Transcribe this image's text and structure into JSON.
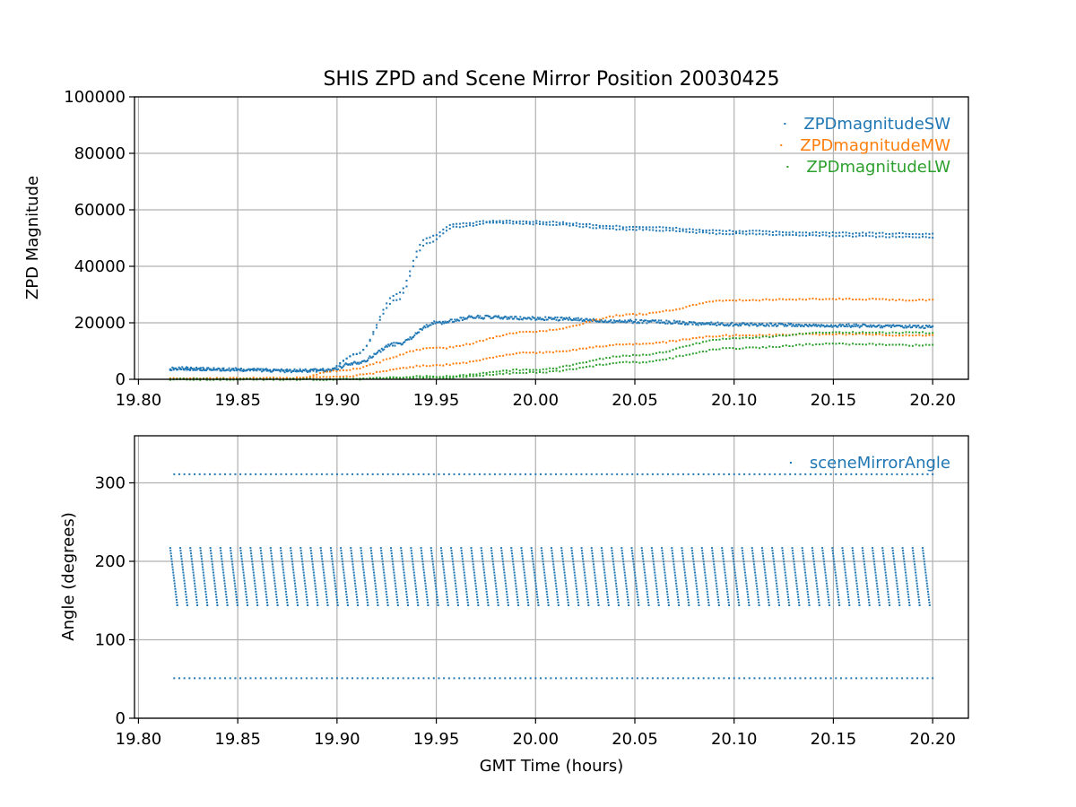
{
  "chart_data": [
    {
      "type": "scatter",
      "title": "SHIS ZPD and Scene Mirror Position 20030425",
      "xlabel": "",
      "ylabel": "ZPD Magnitude",
      "xlim": [
        19.798,
        20.218
      ],
      "ylim": [
        0,
        100000
      ],
      "xticks": [
        "19.80",
        "19.85",
        "19.90",
        "19.95",
        "20.00",
        "20.05",
        "20.10",
        "20.15",
        "20.20"
      ],
      "yticks": [
        "0",
        "20000",
        "40000",
        "60000",
        "80000",
        "100000"
      ],
      "grid": true,
      "legend": "top-right",
      "series": [
        {
          "name": "ZPDmagnitudeSW",
          "color": "#1f77b4",
          "branches": [
            {
              "x": [
                19.816,
                19.85,
                19.88,
                19.895,
                19.91,
                19.93,
                19.945,
                19.96,
                19.98,
                20.0,
                20.05,
                20.1,
                20.15,
                20.2
              ],
              "y": [
                3500,
                3300,
                3000,
                3200,
                9000,
                28000,
                48000,
                54000,
                55500,
                55000,
                53000,
                51500,
                50800,
                50300
              ]
            },
            {
              "x": [
                19.816,
                19.85,
                19.88,
                19.895,
                19.91,
                19.93,
                19.945,
                19.96,
                19.98,
                20.0,
                20.05,
                20.1,
                20.15,
                20.2
              ],
              "y": [
                3500,
                3300,
                3000,
                3200,
                9000,
                30000,
                50000,
                55000,
                56000,
                55800,
                54000,
                52500,
                51800,
                51500
              ]
            },
            {
              "x": [
                19.816,
                19.85,
                19.88,
                19.895,
                19.91,
                19.93,
                19.95,
                19.97,
                20.0,
                20.05,
                20.1,
                20.15,
                20.2
              ],
              "y": [
                3800,
                3400,
                3000,
                3200,
                6000,
                12500,
                20000,
                22000,
                21500,
                20500,
                19500,
                19000,
                18500
              ]
            }
          ]
        },
        {
          "name": "ZPDmagnitudeMW",
          "color": "#ff7f0e",
          "branches": [
            {
              "x": [
                19.816,
                19.88,
                19.9,
                19.95,
                20.0,
                20.05,
                20.1,
                20.15,
                20.2
              ],
              "y": [
                200,
                400,
                1000,
                5000,
                9500,
                12500,
                15500,
                16000,
                15500
              ]
            },
            {
              "x": [
                19.816,
                19.88,
                19.9,
                19.95,
                20.0,
                20.05,
                20.1,
                20.15,
                20.2
              ],
              "y": [
                200,
                500,
                3000,
                11000,
                17000,
                23000,
                28000,
                28500,
                28000
              ]
            }
          ]
        },
        {
          "name": "ZPDmagnitudeLW",
          "color": "#2ca02c",
          "branches": [
            {
              "x": [
                19.816,
                19.9,
                19.95,
                20.0,
                20.05,
                20.1,
                20.15,
                20.2
              ],
              "y": [
                0,
                0,
                500,
                2500,
                6000,
                11000,
                12500,
                12000
              ]
            },
            {
              "x": [
                19.816,
                19.9,
                19.95,
                20.0,
                20.05,
                20.1,
                20.15,
                20.2
              ],
              "y": [
                0,
                0,
                1000,
                3500,
                8500,
                14500,
                16500,
                16500
              ]
            }
          ]
        }
      ]
    },
    {
      "type": "scatter",
      "title": "",
      "xlabel": "GMT Time (hours)",
      "ylabel": "Angle (degrees)",
      "xlim": [
        19.798,
        20.218
      ],
      "ylim": [
        0,
        360
      ],
      "xticks": [
        "19.80",
        "19.85",
        "19.90",
        "19.95",
        "20.00",
        "20.05",
        "20.10",
        "20.15",
        "20.20"
      ],
      "yticks": [
        "0",
        "100",
        "200",
        "300"
      ],
      "grid": true,
      "legend": "top-right",
      "series": [
        {
          "name": "sceneMirrorAngle",
          "color": "#1f77b4",
          "levels": [
            {
              "x_range": [
                19.818,
                20.2
              ],
              "y": 311
            },
            {
              "x_range": [
                19.818,
                20.2
              ],
              "y": 51
            }
          ],
          "sweep": {
            "x_range": [
              19.816,
              20.2
            ],
            "y_range": [
              144,
              217
            ],
            "sweep_count": 76
          }
        }
      ]
    }
  ]
}
